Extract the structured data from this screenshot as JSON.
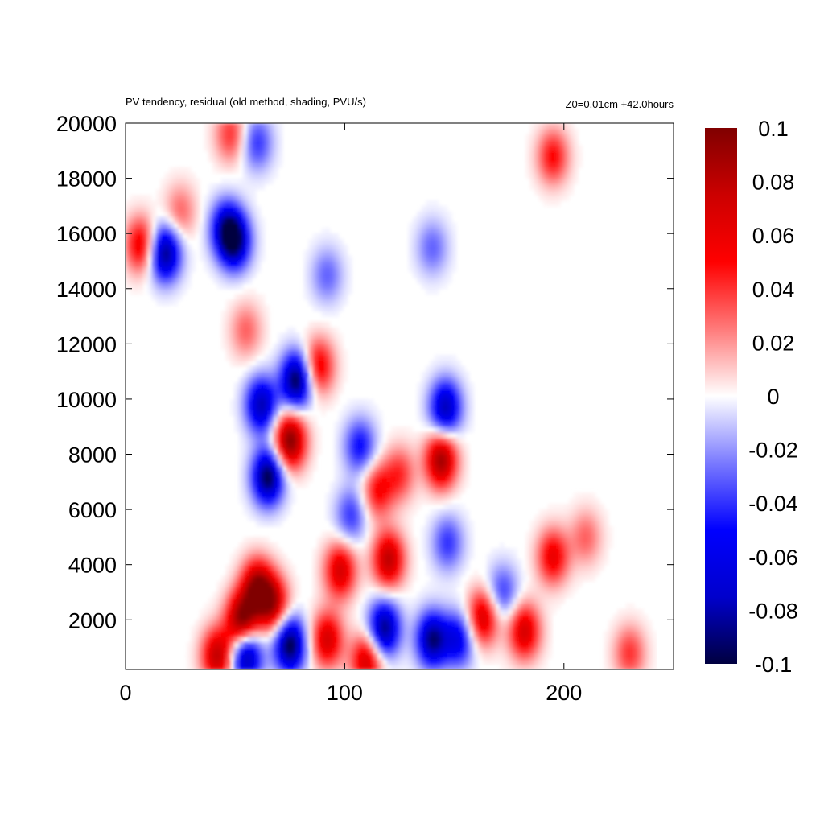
{
  "header": {
    "left_label": "PV tendency, residual (old method, shading, PVU/s)",
    "right_label": "Z0=0.01cm   +42.0hours"
  },
  "chart_data": {
    "type": "heatmap",
    "title": "PV tendency, residual (old method, shading, PVU/s)",
    "annotation": "Z0=0.01cm   +42.0hours",
    "xlabel": "",
    "ylabel": "",
    "xlim": [
      0,
      250
    ],
    "ylim": [
      200,
      20000
    ],
    "x_ticks": [
      0,
      100,
      200
    ],
    "y_ticks": [
      2000,
      4000,
      6000,
      8000,
      10000,
      12000,
      14000,
      16000,
      18000,
      20000
    ],
    "grid": false,
    "colorbar": {
      "min": -0.1,
      "max": 0.1,
      "ticks": [
        -0.1,
        -0.08,
        -0.06,
        -0.04,
        -0.02,
        0,
        0.02,
        0.04,
        0.06,
        0.08,
        0.1
      ],
      "colormap": [
        "#000040",
        "#0000cc",
        "#0000ff",
        "#7a7aff",
        "#ffffff",
        "#ff7a7a",
        "#ff0000",
        "#cc0000",
        "#800000"
      ]
    },
    "features": [
      {
        "x": 7,
        "y": 15600,
        "value": 0.06
      },
      {
        "x": 18,
        "y": 15300,
        "value": -0.09
      },
      {
        "x": 46,
        "y": 16200,
        "value": -0.07
      },
      {
        "x": 50,
        "y": 15700,
        "value": -0.08
      },
      {
        "x": 25,
        "y": 16800,
        "value": 0.03
      },
      {
        "x": 48,
        "y": 19600,
        "value": 0.04
      },
      {
        "x": 60,
        "y": 19300,
        "value": -0.04
      },
      {
        "x": 195,
        "y": 18800,
        "value": 0.05
      },
      {
        "x": 75,
        "y": 8500,
        "value": 0.1
      },
      {
        "x": 65,
        "y": 7200,
        "value": -0.1
      },
      {
        "x": 78,
        "y": 10700,
        "value": -0.1
      },
      {
        "x": 62,
        "y": 9800,
        "value": -0.08
      },
      {
        "x": 53,
        "y": 2000,
        "value": 0.1
      },
      {
        "x": 60,
        "y": 3200,
        "value": 0.09
      },
      {
        "x": 67,
        "y": 2600,
        "value": 0.08
      },
      {
        "x": 75,
        "y": 1100,
        "value": -0.1
      },
      {
        "x": 55,
        "y": 700,
        "value": -0.09
      },
      {
        "x": 42,
        "y": 700,
        "value": 0.08
      },
      {
        "x": 88,
        "y": 11200,
        "value": 0.06
      },
      {
        "x": 92,
        "y": 1300,
        "value": 0.07
      },
      {
        "x": 98,
        "y": 3800,
        "value": 0.07
      },
      {
        "x": 110,
        "y": 500,
        "value": 0.07
      },
      {
        "x": 118,
        "y": 1700,
        "value": -0.09
      },
      {
        "x": 120,
        "y": 4200,
        "value": 0.08
      },
      {
        "x": 107,
        "y": 8300,
        "value": -0.05
      },
      {
        "x": 103,
        "y": 5800,
        "value": -0.04
      },
      {
        "x": 115,
        "y": 6700,
        "value": 0.05
      },
      {
        "x": 125,
        "y": 7300,
        "value": 0.04
      },
      {
        "x": 144,
        "y": 7800,
        "value": 0.09
      },
      {
        "x": 146,
        "y": 9700,
        "value": -0.08
      },
      {
        "x": 147,
        "y": 4800,
        "value": -0.04
      },
      {
        "x": 140,
        "y": 1300,
        "value": -0.09
      },
      {
        "x": 152,
        "y": 1300,
        "value": -0.06
      },
      {
        "x": 163,
        "y": 2100,
        "value": 0.07
      },
      {
        "x": 182,
        "y": 1600,
        "value": 0.07
      },
      {
        "x": 195,
        "y": 4300,
        "value": 0.06
      },
      {
        "x": 172,
        "y": 3000,
        "value": -0.04
      },
      {
        "x": 210,
        "y": 5000,
        "value": 0.03
      },
      {
        "x": 92,
        "y": 14500,
        "value": -0.03
      },
      {
        "x": 55,
        "y": 12500,
        "value": 0.03
      },
      {
        "x": 140,
        "y": 15500,
        "value": -0.03
      },
      {
        "x": 230,
        "y": 800,
        "value": 0.04
      }
    ]
  }
}
